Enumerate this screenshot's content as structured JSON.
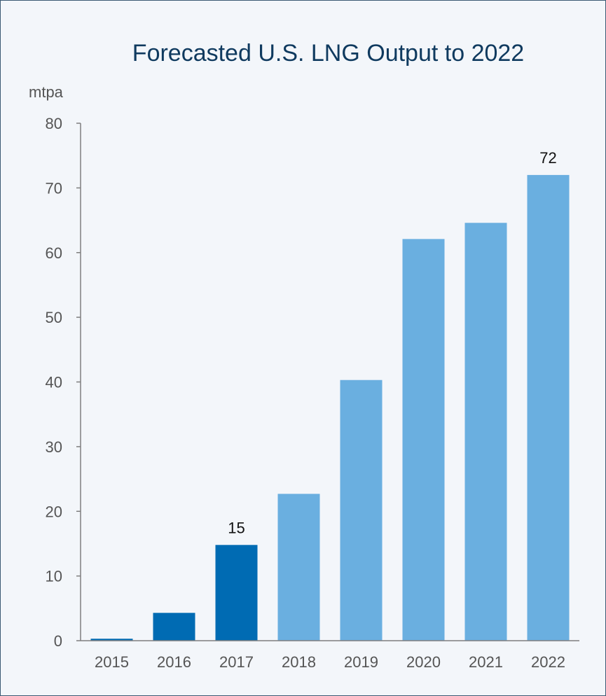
{
  "chart_data": {
    "type": "bar",
    "title": "Forecasted U.S. LNG Output to 2022",
    "ylabel": "mtpa",
    "xlabel": "",
    "ylim": [
      0,
      80
    ],
    "yticks": [
      0,
      10,
      20,
      30,
      40,
      50,
      60,
      70,
      80
    ],
    "categories": [
      "2015",
      "2016",
      "2017",
      "2018",
      "2019",
      "2020",
      "2021",
      "2022"
    ],
    "values": [
      0.3,
      4.3,
      14.8,
      22.7,
      40.3,
      62.1,
      64.6,
      72
    ],
    "bar_kinds": [
      "dark",
      "dark",
      "dark",
      "light",
      "light",
      "light",
      "light",
      "light"
    ],
    "data_labels": [
      {
        "category": "2017",
        "text": "15"
      },
      {
        "category": "2022",
        "text": "72"
      }
    ],
    "grid": false,
    "legend": "none"
  },
  "colors": {
    "dark": "#006bb3",
    "light": "#6aafe0",
    "axis": "#7f7f7f",
    "title": "#0f3a5f",
    "background": "#f3f6fa"
  }
}
